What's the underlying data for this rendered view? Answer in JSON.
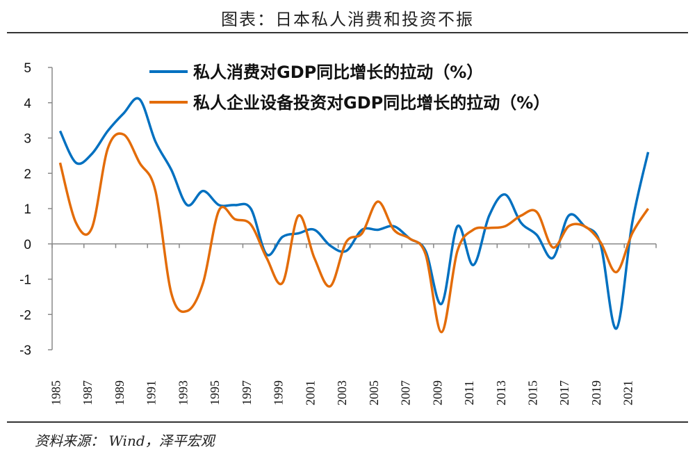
{
  "title": "图表：日本私人消费和投资不振",
  "source": "资料来源： Wind，泽平宏观",
  "chart_data": {
    "type": "line",
    "x": [
      1985,
      1986,
      1987,
      1988,
      1989,
      1990,
      1991,
      1992,
      1993,
      1994,
      1995,
      1996,
      1997,
      1998,
      1999,
      2000,
      2001,
      2002,
      2003,
      2004,
      2005,
      2006,
      2007,
      2008,
      2009,
      2010,
      2011,
      2012,
      2013,
      2014,
      2015,
      2016,
      2017,
      2018,
      2019,
      2020,
      2021,
      2022
    ],
    "xticklabels": [
      "1985",
      "1987",
      "1989",
      "1991",
      "1993",
      "1995",
      "1997",
      "1999",
      "2001",
      "2003",
      "2005",
      "2007",
      "2009",
      "2011",
      "2013",
      "2015",
      "2017",
      "2019",
      "2021"
    ],
    "ylim": [
      -3,
      5
    ],
    "yticks": [
      "5",
      "4",
      "3",
      "2",
      "1",
      "0",
      "-1",
      "-2",
      "-3"
    ],
    "legend_position": "top",
    "grid": false,
    "series": [
      {
        "name": "私人消费对GDP同比增长的拉动（%）",
        "color": "#0070C0",
        "values": [
          3.2,
          2.3,
          2.55,
          3.2,
          3.7,
          4.1,
          2.9,
          2.1,
          1.1,
          1.5,
          1.1,
          1.1,
          1.0,
          -0.3,
          0.2,
          0.3,
          0.4,
          -0.05,
          -0.2,
          0.4,
          0.4,
          0.5,
          0.15,
          -0.2,
          -1.7,
          0.5,
          -0.6,
          0.8,
          1.4,
          0.6,
          0.25,
          -0.4,
          0.8,
          0.5,
          0.0,
          -2.4,
          0.6,
          2.6
        ]
      },
      {
        "name": "私人企业设备投资对GDP同比增长的拉动（%）",
        "color": "#E36C09",
        "values": [
          2.3,
          0.6,
          0.45,
          2.7,
          3.1,
          2.3,
          1.5,
          -1.4,
          -1.9,
          -1.1,
          0.95,
          0.7,
          0.55,
          -0.4,
          -1.1,
          0.8,
          -0.4,
          -1.2,
          0.05,
          0.3,
          1.2,
          0.4,
          0.15,
          -0.3,
          -2.5,
          -0.2,
          0.4,
          0.45,
          0.5,
          0.8,
          0.9,
          -0.1,
          0.5,
          0.5,
          0.05,
          -0.8,
          0.3,
          1.0
        ]
      }
    ]
  }
}
